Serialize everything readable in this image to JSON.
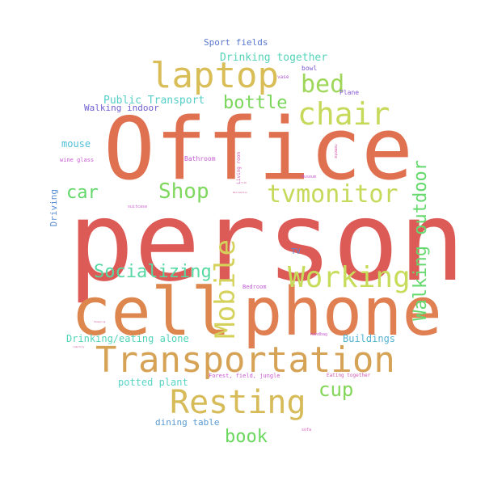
{
  "words": {
    "person": "person",
    "office": "Office",
    "cell": "cell",
    "phone": "phone",
    "transportation": "Transportation",
    "resting": "Resting",
    "laptop": "laptop",
    "chair": "chair",
    "tvmonitor": "tvmonitor",
    "working": "Working",
    "mobile": "Mobile",
    "bed": "bed",
    "bottle": "bottle",
    "shop": "Shop",
    "car": "car",
    "socializing": "Socializing",
    "walking_outdoor": "Walking outdoor",
    "cup": "cup",
    "book": "book",
    "drinking_together": "Drinking together",
    "public_transport": "Public Transport",
    "walking_indoor": "Walking indoor",
    "mouse": "mouse",
    "sport_fields": "Sport fields",
    "drinking_eating_alone": "Drinking/eating alone",
    "buildings": "Buildings",
    "potted_plant": "potted plant",
    "dining_table": "dining table",
    "driving": "Driving",
    "tv": "TV",
    "wine_glass": "wine glass",
    "bathroom": "Bathroom",
    "bowl": "bowl",
    "plane": "Plane",
    "vase": "vase",
    "living_room": "Living room",
    "remote": "remote",
    "museum": "Museum",
    "suitcase": "suitcase",
    "bedroom": "Bedroom",
    "forest": "Forest, field, jungle",
    "eating_together": "Eating together",
    "handbag": "handbag",
    "sofa": "sofa",
    "shopping": "Shopping",
    "identity": "identity",
    "recreation": "Recreation",
    "fish": "fish"
  },
  "colors": {
    "red": "#dd5b57",
    "orange": "#df7a54",
    "tan": "#d4a75a",
    "mustard": "#d9c25a",
    "lime": "#c4d95a",
    "green": "#8fd65a",
    "teal_green": "#55d98c",
    "aqua": "#53d6c2",
    "sky": "#52b8d6",
    "blue": "#5286d6",
    "indigo": "#5a63c9",
    "violet": "#8a5ad6",
    "magenta": "#d05ad6",
    "pink": "#d65aa8"
  }
}
